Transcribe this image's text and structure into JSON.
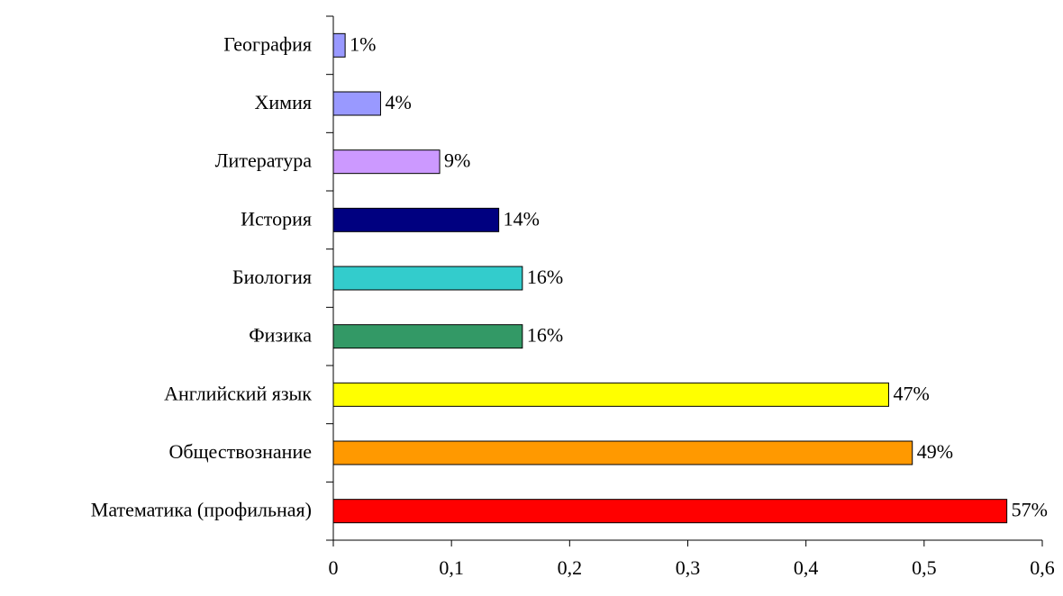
{
  "chart_data": {
    "type": "barh",
    "categories": [
      "География",
      "Химия",
      "Литература",
      "История",
      "Биология",
      "Физика",
      "Английский язык",
      "Обществознание",
      "Математика (профильная)"
    ],
    "values": [
      0.01,
      0.04,
      0.09,
      0.14,
      0.16,
      0.16,
      0.47,
      0.49,
      0.57
    ],
    "value_labels": [
      "1%",
      "4%",
      "9%",
      "14%",
      "16%",
      "16%",
      "47%",
      "49%",
      "57%"
    ],
    "colors": [
      "#9999ff",
      "#9999ff",
      "#cc99ff",
      "#000080",
      "#33cccc",
      "#339966",
      "#ffff00",
      "#ff9900",
      "#ff0000"
    ],
    "xlim": [
      0,
      0.6
    ],
    "xticks": [
      0,
      {
        "value": 0.1,
        "label": "0,1"
      },
      {
        "value": 0.2,
        "label": "0,2"
      },
      {
        "value": 0.3,
        "label": "0,3"
      },
      {
        "value": 0.4,
        "label": "0,4"
      },
      {
        "value": 0.5,
        "label": "0,5"
      },
      {
        "value": 0.6,
        "label": "0,6"
      }
    ]
  }
}
